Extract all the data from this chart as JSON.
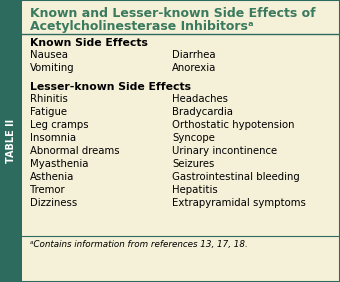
{
  "title_line1": "Known and Lesser-known Side Effects of",
  "title_line2": "Acetylcholinesterase Inhibitorsᵃ",
  "bg_color": "#f5f0d8",
  "sidebar_color": "#2d6b5e",
  "border_color": "#2d6b5e",
  "title_color": "#3a7a5e",
  "sidebar_text": "TABLE II",
  "known_header": "Known Side Effects",
  "known_left": [
    "Nausea",
    "Vomiting"
  ],
  "known_right": [
    "Diarrhea",
    "Anorexia"
  ],
  "lesser_header": "Lesser-known Side Effects",
  "lesser_left": [
    "Rhinitis",
    "Fatigue",
    "Leg cramps",
    "Insomnia",
    "Abnormal dreams",
    "Myasthenia",
    "Asthenia",
    "Tremor",
    "Dizziness"
  ],
  "lesser_right": [
    "Headaches",
    "Bradycardia",
    "Orthostatic hypotension",
    "Syncope",
    "Urinary incontinence",
    "Seizures",
    "Gastrointestinal bleeding",
    "Hepatitis",
    "Extrapyramidal symptoms"
  ],
  "footnote": "ᵃContains information from references 13, 17, 18."
}
